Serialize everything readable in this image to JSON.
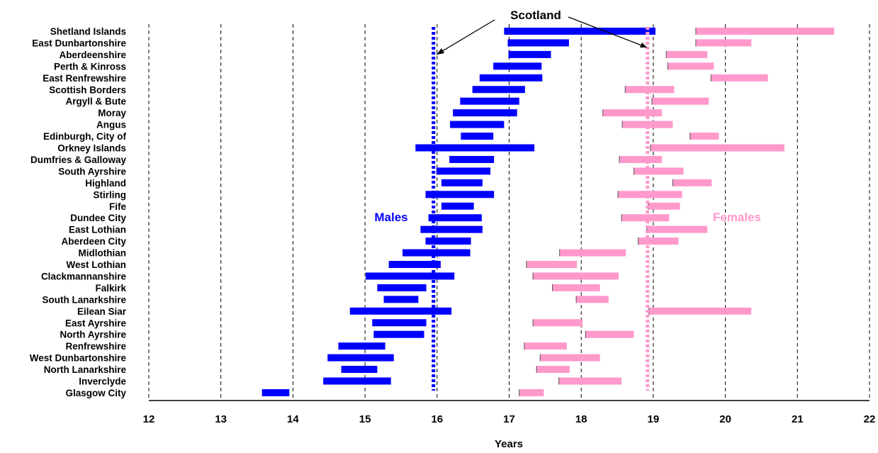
{
  "chart_data": {
    "type": "bar",
    "xlabel": "Years",
    "xlim": [
      12,
      22
    ],
    "x_ticks": [
      "12",
      "13",
      "14",
      "15",
      "16",
      "17",
      "18",
      "19",
      "20",
      "21",
      "22"
    ],
    "grid": "vertical dashed",
    "categories": [
      "Shetland Islands",
      "East Dunbartonshire",
      "Aberdeenshire",
      "Perth & Kinross",
      "East Renfrewshire",
      "Scottish Borders",
      "Argyll & Bute",
      "Moray",
      "Angus",
      "Edinburgh, City of",
      "Orkney Islands",
      "Dumfries & Galloway",
      "South Ayrshire",
      "Highland",
      "Stirling",
      "Fife",
      "Dundee City",
      "East Lothian",
      "Aberdeen City",
      "Midlothian",
      "West Lothian",
      "Clackmannanshire",
      "Falkirk",
      "South Lanarkshire",
      "Eilean Siar",
      "East Ayrshire",
      "North Ayrshire",
      "Renfrewshire",
      "West Dunbartonshire",
      "North Lanarkshire",
      "Inverclyde",
      "Glasgow City"
    ],
    "series": [
      {
        "name": "Males",
        "color": "#0000ff",
        "ranges": [
          [
            16.93,
            19.03
          ],
          [
            16.98,
            17.83
          ],
          [
            16.99,
            17.58
          ],
          [
            16.78,
            17.45
          ],
          [
            16.59,
            17.46
          ],
          [
            16.49,
            17.22
          ],
          [
            16.32,
            17.14
          ],
          [
            16.22,
            17.11
          ],
          [
            16.18,
            16.93
          ],
          [
            16.33,
            16.78
          ],
          [
            15.7,
            17.35
          ],
          [
            16.17,
            16.79
          ],
          [
            15.99,
            16.74
          ],
          [
            16.06,
            16.63
          ],
          [
            15.84,
            16.79
          ],
          [
            16.06,
            16.51
          ],
          [
            15.88,
            16.62
          ],
          [
            15.77,
            16.63
          ],
          [
            15.84,
            16.47
          ],
          [
            15.52,
            16.46
          ],
          [
            15.33,
            16.05
          ],
          [
            15.01,
            16.24
          ],
          [
            15.17,
            15.85
          ],
          [
            15.26,
            15.74
          ],
          [
            14.79,
            16.2
          ],
          [
            15.1,
            15.85
          ],
          [
            15.12,
            15.82
          ],
          [
            14.63,
            15.28
          ],
          [
            14.48,
            15.4
          ],
          [
            14.67,
            15.17
          ],
          [
            14.42,
            15.36
          ],
          [
            13.57,
            13.95
          ]
        ],
        "reference_value": 15.95
      },
      {
        "name": "Females",
        "color": "#ff99cc",
        "ranges": [
          [
            19.59,
            21.51
          ],
          [
            19.59,
            20.36
          ],
          [
            19.18,
            19.75
          ],
          [
            19.2,
            19.84
          ],
          [
            19.8,
            20.59
          ],
          [
            18.61,
            19.29
          ],
          [
            18.98,
            19.77
          ],
          [
            18.3,
            19.12
          ],
          [
            18.57,
            19.27
          ],
          [
            19.51,
            19.91
          ],
          [
            18.96,
            20.82
          ],
          [
            18.53,
            19.12
          ],
          [
            18.73,
            19.42
          ],
          [
            19.27,
            19.81
          ],
          [
            18.51,
            19.4
          ],
          [
            18.93,
            19.37
          ],
          [
            18.56,
            19.22
          ],
          [
            18.91,
            19.75
          ],
          [
            18.79,
            19.35
          ],
          [
            17.7,
            18.62
          ],
          [
            17.24,
            17.94
          ],
          [
            17.33,
            18.52
          ],
          [
            17.6,
            18.26
          ],
          [
            17.93,
            18.38
          ],
          [
            18.94,
            20.36
          ],
          [
            17.33,
            18.02
          ],
          [
            18.06,
            18.73
          ],
          [
            17.21,
            17.8
          ],
          [
            17.43,
            18.26
          ],
          [
            17.38,
            17.84
          ],
          [
            17.69,
            18.56
          ],
          [
            17.14,
            17.48
          ]
        ],
        "reference_value": 18.92
      }
    ],
    "annotations": {
      "reference_label": "Scotland",
      "males_label": "Males",
      "females_label": "Females"
    }
  }
}
